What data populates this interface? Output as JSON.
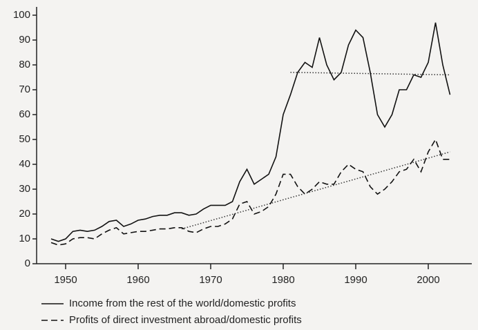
{
  "chart_data": {
    "type": "line",
    "x": [
      1948,
      1949,
      1950,
      1951,
      1952,
      1953,
      1954,
      1955,
      1956,
      1957,
      1958,
      1959,
      1960,
      1961,
      1962,
      1963,
      1964,
      1965,
      1966,
      1967,
      1968,
      1969,
      1970,
      1971,
      1972,
      1973,
      1974,
      1975,
      1976,
      1977,
      1978,
      1979,
      1980,
      1981,
      1982,
      1983,
      1984,
      1985,
      1986,
      1987,
      1988,
      1989,
      1990,
      1991,
      1992,
      1993,
      1994,
      1995,
      1996,
      1997,
      1998,
      1999,
      2000,
      2001,
      2002,
      2003
    ],
    "series": [
      {
        "name": "Income from the rest of the world/domestic profits",
        "color": "#111111",
        "style": "solid",
        "values": [
          10,
          9,
          10,
          13,
          13.5,
          13,
          13.5,
          15,
          17,
          17.5,
          15,
          16,
          17.5,
          18,
          19,
          19.5,
          19.5,
          20.5,
          20.5,
          19.5,
          20,
          22,
          23.5,
          23.5,
          23.5,
          25,
          33,
          38,
          32,
          34,
          36,
          43,
          60,
          68,
          77,
          81,
          79,
          91,
          80,
          74,
          77,
          88,
          94,
          91,
          77,
          60,
          55,
          60,
          70,
          70,
          76,
          75,
          81,
          97,
          80,
          68
        ]
      },
      {
        "name": "Profits of direct investment abroad/domestic profits",
        "color": "#111111",
        "style": "dashed",
        "values": [
          8.5,
          7.5,
          8,
          10,
          10.5,
          10.5,
          10,
          12,
          13.5,
          14.5,
          12,
          12.5,
          13,
          13,
          13.5,
          14,
          14,
          14.5,
          14.5,
          13,
          12.5,
          14,
          15,
          15,
          16,
          18,
          24,
          25,
          20,
          21,
          23,
          28,
          36,
          36,
          31,
          28,
          30,
          33,
          32,
          32,
          37,
          40,
          38,
          37,
          31,
          28,
          30,
          33,
          37,
          38,
          42,
          37,
          45,
          50,
          42,
          42
        ]
      }
    ],
    "trends": [
      {
        "x": [
          1981,
          2003
        ],
        "values": [
          77,
          76
        ]
      },
      {
        "x": [
          1966,
          2003
        ],
        "values": [
          14,
          45
        ]
      }
    ],
    "xlim": [
      1946,
      2006
    ],
    "xticks": [
      1950,
      1960,
      1970,
      1980,
      1990,
      2000
    ],
    "ylim": [
      0,
      100
    ],
    "yticks": [
      0,
      10,
      20,
      30,
      40,
      50,
      60,
      70,
      80,
      90,
      100
    ]
  }
}
